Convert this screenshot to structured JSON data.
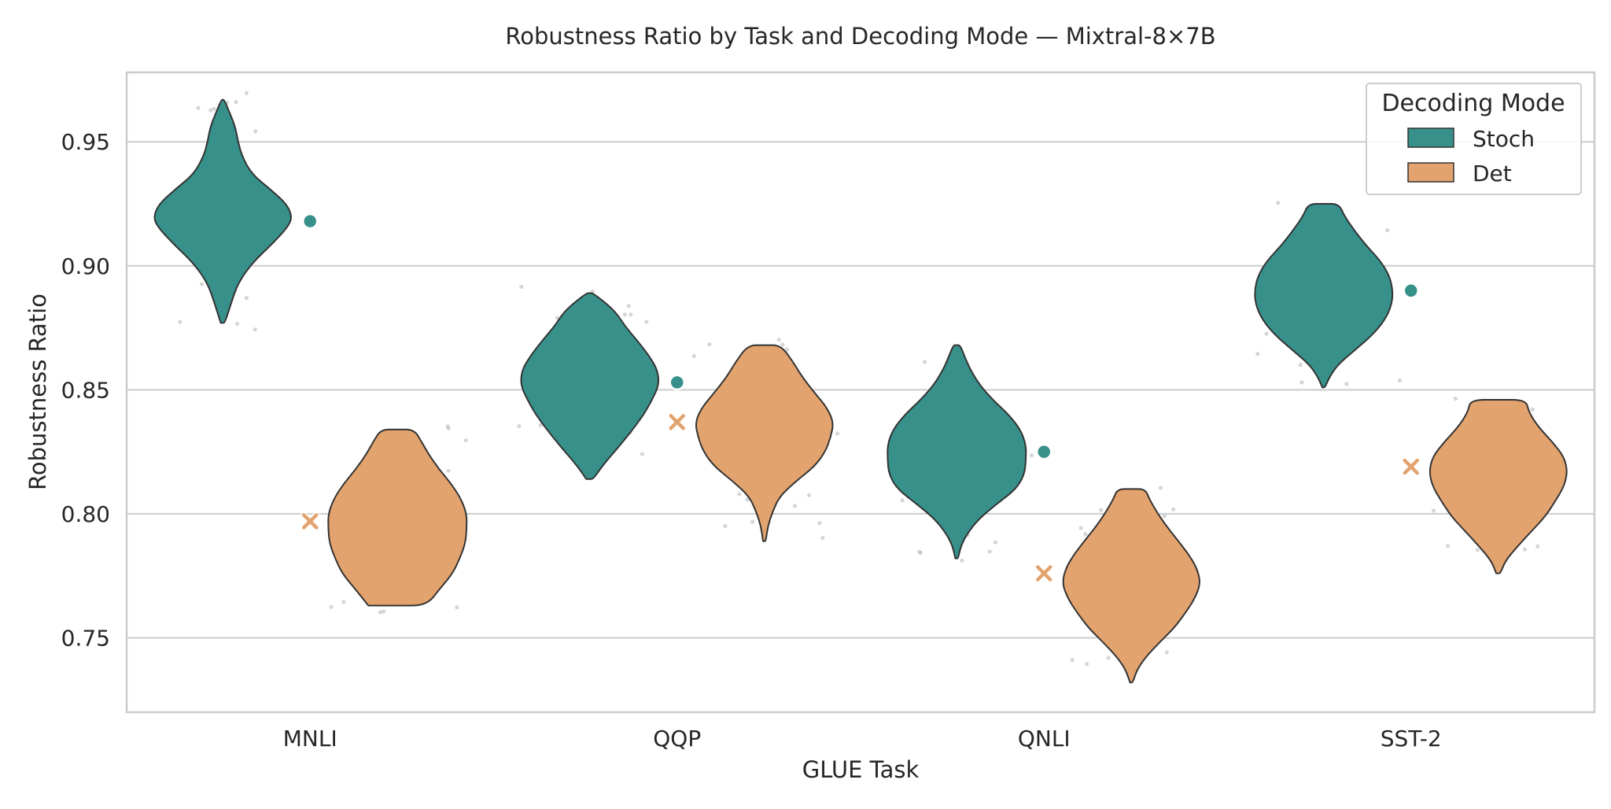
{
  "chart_data": {
    "type": "violin",
    "title": "Robustness Ratio by Task and Decoding Mode — Mixtral-8×7B",
    "xlabel": "GLUE Task",
    "ylabel": "Robustness Ratio",
    "ylim": [
      0.72,
      0.978
    ],
    "yticks": [
      0.75,
      0.8,
      0.85,
      0.9,
      0.95
    ],
    "ytick_labels": [
      "0.75",
      "0.80",
      "0.85",
      "0.90",
      "0.95"
    ],
    "grid": "horizontal",
    "categories": [
      "MNLI",
      "QQP",
      "QNLI",
      "SST-2"
    ],
    "legend": {
      "title": "Decoding Mode",
      "position": "top-right"
    },
    "series": [
      {
        "name": "Stoch",
        "color": "#37908a",
        "marker": "circle",
        "violins": [
          {
            "min": 0.877,
            "max": 0.967,
            "mode": 0.918,
            "mean": 0.918,
            "profile": [
              [
                0.877,
                0.03
              ],
              [
                0.885,
                0.12
              ],
              [
                0.893,
                0.22
              ],
              [
                0.901,
                0.42
              ],
              [
                0.909,
                0.72
              ],
              [
                0.916,
                0.95
              ],
              [
                0.92,
                1.0
              ],
              [
                0.925,
                0.92
              ],
              [
                0.931,
                0.68
              ],
              [
                0.937,
                0.42
              ],
              [
                0.944,
                0.28
              ],
              [
                0.95,
                0.22
              ],
              [
                0.956,
                0.18
              ],
              [
                0.961,
                0.11
              ],
              [
                0.967,
                0.02
              ]
            ]
          },
          {
            "min": 0.814,
            "max": 0.889,
            "mode": 0.855,
            "mean": 0.853,
            "profile": [
              [
                0.814,
                0.05
              ],
              [
                0.82,
                0.2
              ],
              [
                0.827,
                0.42
              ],
              [
                0.834,
                0.62
              ],
              [
                0.84,
                0.78
              ],
              [
                0.846,
                0.9
              ],
              [
                0.852,
                1.0
              ],
              [
                0.858,
                0.98
              ],
              [
                0.864,
                0.85
              ],
              [
                0.87,
                0.68
              ],
              [
                0.876,
                0.5
              ],
              [
                0.882,
                0.36
              ],
              [
                0.889,
                0.05
              ]
            ]
          },
          {
            "min": 0.782,
            "max": 0.868,
            "mode": 0.827,
            "mean": 0.825,
            "profile": [
              [
                0.782,
                0.02
              ],
              [
                0.787,
                0.06
              ],
              [
                0.792,
                0.15
              ],
              [
                0.798,
                0.32
              ],
              [
                0.804,
                0.58
              ],
              [
                0.81,
                0.86
              ],
              [
                0.816,
                0.98
              ],
              [
                0.822,
                1.0
              ],
              [
                0.828,
                1.0
              ],
              [
                0.834,
                0.92
              ],
              [
                0.84,
                0.75
              ],
              [
                0.846,
                0.52
              ],
              [
                0.852,
                0.33
              ],
              [
                0.858,
                0.2
              ],
              [
                0.863,
                0.12
              ],
              [
                0.868,
                0.05
              ]
            ]
          },
          {
            "min": 0.851,
            "max": 0.925,
            "mode": 0.888,
            "mean": 0.89,
            "profile": [
              [
                0.851,
                0.02
              ],
              [
                0.855,
                0.08
              ],
              [
                0.86,
                0.2
              ],
              [
                0.866,
                0.45
              ],
              [
                0.872,
                0.7
              ],
              [
                0.878,
                0.88
              ],
              [
                0.884,
                0.98
              ],
              [
                0.89,
                1.0
              ],
              [
                0.896,
                0.95
              ],
              [
                0.902,
                0.82
              ],
              [
                0.908,
                0.62
              ],
              [
                0.914,
                0.45
              ],
              [
                0.92,
                0.3
              ],
              [
                0.925,
                0.22
              ]
            ]
          }
        ]
      },
      {
        "name": "Det",
        "color": "#e3a36e",
        "marker": "x",
        "violins": [
          {
            "min": 0.763,
            "max": 0.834,
            "mode": 0.798,
            "mean": 0.797,
            "profile": [
              [
                0.763,
                0.42
              ],
              [
                0.77,
                0.62
              ],
              [
                0.776,
                0.8
              ],
              [
                0.782,
                0.9
              ],
              [
                0.788,
                0.98
              ],
              [
                0.794,
                1.0
              ],
              [
                0.8,
                1.0
              ],
              [
                0.806,
                0.92
              ],
              [
                0.812,
                0.78
              ],
              [
                0.818,
                0.6
              ],
              [
                0.824,
                0.45
              ],
              [
                0.829,
                0.35
              ],
              [
                0.834,
                0.24
              ]
            ]
          },
          {
            "min": 0.789,
            "max": 0.868,
            "mode": 0.835,
            "mean": 0.837,
            "profile": [
              [
                0.789,
                0.02
              ],
              [
                0.795,
                0.05
              ],
              [
                0.801,
                0.12
              ],
              [
                0.807,
                0.22
              ],
              [
                0.813,
                0.45
              ],
              [
                0.819,
                0.72
              ],
              [
                0.825,
                0.88
              ],
              [
                0.831,
                0.96
              ],
              [
                0.837,
                1.0
              ],
              [
                0.843,
                0.9
              ],
              [
                0.849,
                0.72
              ],
              [
                0.855,
                0.55
              ],
              [
                0.861,
                0.42
              ],
              [
                0.868,
                0.24
              ]
            ]
          },
          {
            "min": 0.732,
            "max": 0.81,
            "mode": 0.772,
            "mean": 0.776,
            "profile": [
              [
                0.732,
                0.02
              ],
              [
                0.737,
                0.08
              ],
              [
                0.742,
                0.2
              ],
              [
                0.748,
                0.4
              ],
              [
                0.754,
                0.62
              ],
              [
                0.76,
                0.78
              ],
              [
                0.766,
                0.92
              ],
              [
                0.772,
                1.0
              ],
              [
                0.778,
                0.95
              ],
              [
                0.784,
                0.82
              ],
              [
                0.79,
                0.65
              ],
              [
                0.796,
                0.48
              ],
              [
                0.802,
                0.34
              ],
              [
                0.806,
                0.26
              ],
              [
                0.81,
                0.2
              ]
            ]
          },
          {
            "min": 0.776,
            "max": 0.846,
            "mode": 0.817,
            "mean": 0.819,
            "profile": [
              [
                0.776,
                0.03
              ],
              [
                0.781,
                0.1
              ],
              [
                0.787,
                0.28
              ],
              [
                0.793,
                0.48
              ],
              [
                0.799,
                0.68
              ],
              [
                0.805,
                0.82
              ],
              [
                0.811,
                0.95
              ],
              [
                0.817,
                1.0
              ],
              [
                0.823,
                0.95
              ],
              [
                0.829,
                0.78
              ],
              [
                0.835,
                0.58
              ],
              [
                0.841,
                0.44
              ],
              [
                0.846,
                0.4
              ]
            ]
          }
        ]
      }
    ]
  }
}
